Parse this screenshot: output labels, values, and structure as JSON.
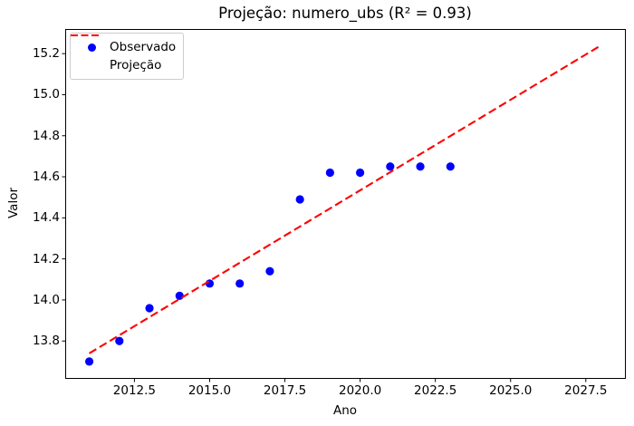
{
  "chart_data": {
    "type": "scatter",
    "title": "Projeção: numero_ubs (R² = 0.93)",
    "r_squared": "0.93",
    "xlabel": "Ano",
    "ylabel": "Valor",
    "xlim": [
      2010.2,
      2028.8
    ],
    "ylim": [
      13.62,
      15.32
    ],
    "x_ticks": [
      2012.5,
      2015,
      2017.5,
      2020,
      2022.5,
      2025,
      2027.5
    ],
    "x_tick_labels": [
      "2012.5",
      "2015.0",
      "2017.5",
      "2020.0",
      "2022.5",
      "2025.0",
      "2027.5"
    ],
    "y_ticks": [
      13.8,
      14.0,
      14.2,
      14.4,
      14.6,
      14.8,
      15.0,
      15.2
    ],
    "y_tick_labels": [
      "13.8",
      "14.0",
      "14.2",
      "14.4",
      "14.6",
      "14.8",
      "15.0",
      "15.2"
    ],
    "grid": false,
    "legend_position": "upper-left",
    "legend": {
      "entries": [
        {
          "label": "Observado",
          "marker": "dot",
          "color": "#0000ff"
        },
        {
          "label": "Projeção",
          "marker": "dashed-line",
          "color": "#ff0000"
        }
      ]
    },
    "series": [
      {
        "name": "Observado",
        "type": "scatter",
        "color": "#0000ff",
        "x": [
          2011,
          2012,
          2013,
          2014,
          2015,
          2016,
          2017,
          2018,
          2019,
          2020,
          2021,
          2022,
          2023
        ],
        "y": [
          13.7,
          13.8,
          13.96,
          14.02,
          14.08,
          14.08,
          14.14,
          14.49,
          14.62,
          14.62,
          14.65,
          14.65,
          14.65
        ]
      },
      {
        "name": "Projeção",
        "type": "line",
        "style": "dashed",
        "color": "#ff0000",
        "x": [
          2011,
          2028
        ],
        "y": [
          13.74,
          15.24
        ]
      }
    ],
    "colors": {
      "frame": "#000000",
      "text": "#000000",
      "background": "#ffffff",
      "legend_border": "#cccccc"
    }
  }
}
